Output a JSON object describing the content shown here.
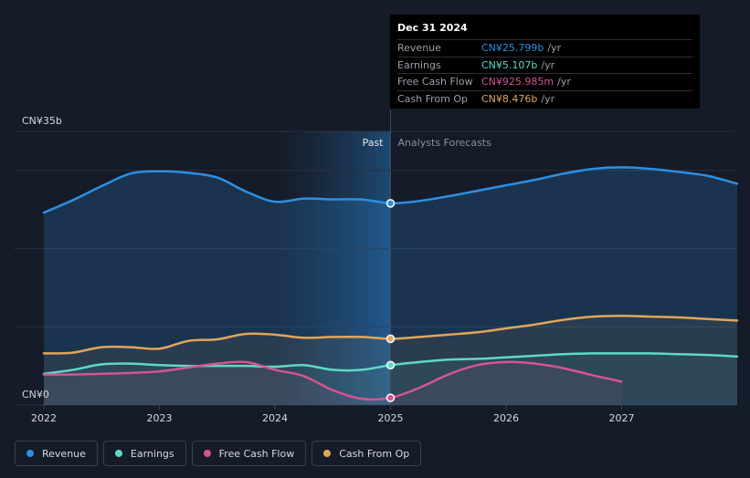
{
  "chart_data": {
    "type": "line",
    "title": "",
    "ylabel_top": "CN¥35b",
    "ylabel_bottom": "CN¥0",
    "ylim": [
      0,
      35
    ],
    "xlim": [
      2021.75,
      2028.0
    ],
    "x_ticks": [
      2022,
      2023,
      2024,
      2025,
      2026,
      2027
    ],
    "x_tick_labels": [
      "2022",
      "2023",
      "2024",
      "2025",
      "2026",
      "2027"
    ],
    "divider_x": 2025.0,
    "highlight_start_x": 2024.0,
    "past_label": "Past",
    "forecast_label": "Analysts Forecasts",
    "series": [
      {
        "name": "Revenue",
        "color": "#2f8fe0",
        "x": [
          2022.0,
          2022.25,
          2022.5,
          2022.75,
          2023.0,
          2023.25,
          2023.5,
          2023.75,
          2024.0,
          2024.25,
          2024.5,
          2024.75,
          2025.0,
          2025.25,
          2025.5,
          2025.75,
          2026.0,
          2026.25,
          2026.5,
          2026.75,
          2027.0,
          2027.25,
          2027.5,
          2027.75,
          2028.0
        ],
        "values": [
          24.6,
          26.2,
          28.0,
          29.6,
          29.9,
          29.7,
          29.1,
          27.3,
          26.0,
          26.4,
          26.3,
          26.3,
          25.8,
          26.1,
          26.7,
          27.4,
          28.1,
          28.8,
          29.6,
          30.2,
          30.4,
          30.2,
          29.8,
          29.3,
          28.3
        ]
      },
      {
        "name": "Earnings",
        "color": "#5fd9c3",
        "x": [
          2022.0,
          2022.25,
          2022.5,
          2022.75,
          2023.0,
          2023.25,
          2023.5,
          2023.75,
          2024.0,
          2024.25,
          2024.5,
          2024.75,
          2025.0,
          2025.25,
          2025.5,
          2025.75,
          2026.0,
          2026.25,
          2026.5,
          2026.75,
          2027.0,
          2027.25,
          2027.5,
          2027.75,
          2028.0
        ],
        "values": [
          4.0,
          4.5,
          5.2,
          5.3,
          5.1,
          5.0,
          5.0,
          5.0,
          4.9,
          5.1,
          4.5,
          4.5,
          5.107,
          5.5,
          5.8,
          5.9,
          6.1,
          6.3,
          6.5,
          6.6,
          6.6,
          6.6,
          6.5,
          6.4,
          6.2
        ]
      },
      {
        "name": "Free Cash Flow",
        "color": "#d45591",
        "x": [
          2022.0,
          2022.25,
          2022.5,
          2022.75,
          2023.0,
          2023.25,
          2023.5,
          2023.75,
          2024.0,
          2024.25,
          2024.5,
          2024.75,
          2025.0,
          2025.25,
          2025.5,
          2025.75,
          2026.0,
          2026.25,
          2026.5,
          2026.75,
          2027.0
        ],
        "values": [
          3.9,
          3.9,
          4.0,
          4.1,
          4.3,
          4.8,
          5.3,
          5.5,
          4.5,
          3.7,
          1.9,
          0.8,
          0.926,
          2.2,
          3.9,
          5.1,
          5.5,
          5.3,
          4.7,
          3.8,
          3.0
        ]
      },
      {
        "name": "Cash From Op",
        "color": "#e0a65a",
        "x": [
          2022.0,
          2022.25,
          2022.5,
          2022.75,
          2023.0,
          2023.25,
          2023.5,
          2023.75,
          2024.0,
          2024.25,
          2024.5,
          2024.75,
          2025.0,
          2025.25,
          2025.5,
          2025.75,
          2026.0,
          2026.25,
          2026.5,
          2026.75,
          2027.0,
          2027.25,
          2027.5,
          2027.75,
          2028.0
        ],
        "values": [
          6.6,
          6.7,
          7.4,
          7.4,
          7.2,
          8.2,
          8.4,
          9.1,
          9.0,
          8.6,
          8.7,
          8.7,
          8.476,
          8.7,
          9.0,
          9.3,
          9.8,
          10.3,
          10.9,
          11.3,
          11.4,
          11.3,
          11.2,
          11.0,
          10.8
        ]
      }
    ],
    "highlight_x": 2025.0
  },
  "tooltip": {
    "date": "Dec 31 2024",
    "rows": [
      {
        "label": "Revenue",
        "value": "CN¥25.799b",
        "unit": "/yr",
        "color": "#2f8fe0"
      },
      {
        "label": "Earnings",
        "value": "CN¥5.107b",
        "unit": "/yr",
        "color": "#5fd9c3"
      },
      {
        "label": "Free Cash Flow",
        "value": "CN¥925.985m",
        "unit": "/yr",
        "color": "#d45591"
      },
      {
        "label": "Cash From Op",
        "value": "CN¥8.476b",
        "unit": "/yr",
        "color": "#e0a65a"
      }
    ]
  },
  "legend": [
    {
      "label": "Revenue",
      "color": "#2f8fe0"
    },
    {
      "label": "Earnings",
      "color": "#5fd9c3"
    },
    {
      "label": "Free Cash Flow",
      "color": "#d45591"
    },
    {
      "label": "Cash From Op",
      "color": "#e0a65a"
    }
  ]
}
